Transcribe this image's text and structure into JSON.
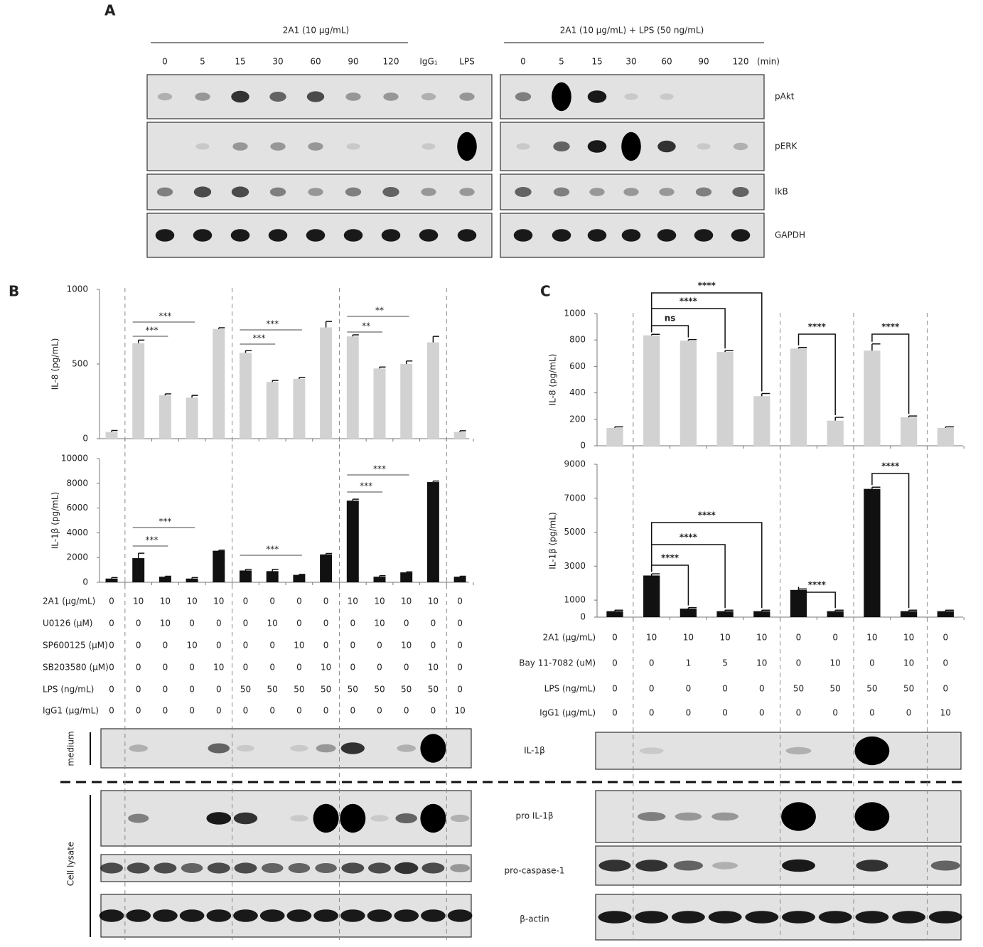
{
  "panel_labels": [
    "A",
    "B",
    "C"
  ],
  "panel_a": {
    "groups": [
      {
        "title": "2A1 (10 µg/mL)",
        "lanes": [
          "0",
          "5",
          "15",
          "30",
          "60",
          "90",
          "120",
          "IgG₁",
          "LPS"
        ]
      },
      {
        "title": "2A1 (10 µg/mL) + LPS (50 ng/mL)",
        "lanes": [
          "0",
          "5",
          "15",
          "30",
          "60",
          "90",
          "120"
        ]
      }
    ],
    "unit": "(min)",
    "blots": [
      "pAkt",
      "pERK",
      "IkB",
      "GAPDH"
    ]
  },
  "chart_data": [
    {
      "type": "bar",
      "ylabel": "IL-8 (pg/mL)",
      "color": "#d2d2d2",
      "ylim": [
        0,
        1000
      ],
      "yticks": [
        0,
        500,
        1000
      ],
      "values": [
        45,
        640,
        290,
        275,
        735,
        575,
        380,
        400,
        745,
        685,
        470,
        500,
        645,
        45
      ],
      "errors": [
        10,
        20,
        10,
        15,
        8,
        15,
        10,
        10,
        40,
        10,
        10,
        20,
        40,
        8
      ],
      "annotations": [
        "***",
        "***",
        "***",
        "***",
        "**",
        "**"
      ]
    },
    {
      "type": "bar",
      "ylabel": "IL-1β (pg/mL)",
      "color": "#111111",
      "ylim": [
        0,
        10000
      ],
      "yticks": [
        0,
        2000,
        4000,
        6000,
        8000,
        10000
      ],
      "values": [
        300,
        1950,
        450,
        300,
        2550,
        950,
        900,
        600,
        2250,
        6600,
        450,
        800,
        8100,
        450
      ],
      "errors": [
        80,
        400,
        40,
        80,
        40,
        100,
        150,
        40,
        80,
        120,
        80,
        40,
        80,
        40
      ],
      "annotations": [
        "***",
        "***",
        "***",
        "***",
        "***"
      ]
    },
    {
      "type": "bar",
      "ylabel": "IL-8 (pg/mL)",
      "color": "#d2d2d2",
      "ylim": [
        0,
        1000
      ],
      "yticks": [
        0,
        200,
        400,
        600,
        800,
        1000
      ],
      "values": [
        135,
        835,
        795,
        710,
        375,
        735,
        190,
        720,
        215,
        135
      ],
      "errors": [
        8,
        8,
        8,
        10,
        20,
        8,
        25,
        50,
        10,
        8
      ],
      "annotations": [
        "ns",
        "****",
        "****",
        "****",
        "****"
      ]
    },
    {
      "type": "bar",
      "ylabel": "IL-1β (pg/mL)",
      "color": "#111111",
      "ylim": [
        0,
        9000
      ],
      "yticks": [
        0,
        1000,
        3000,
        5000,
        7000,
        9000
      ],
      "values": [
        350,
        2450,
        500,
        350,
        350,
        1600,
        350,
        7550,
        350,
        350
      ],
      "errors": [
        60,
        100,
        60,
        60,
        60,
        60,
        60,
        100,
        60,
        60
      ],
      "annotations": [
        "****",
        "****",
        "****",
        "****",
        "****"
      ]
    }
  ],
  "panel_b": {
    "conditions": [
      {
        "label": "2A1 (µg/mL)",
        "values": [
          0,
          10,
          10,
          10,
          10,
          0,
          0,
          0,
          0,
          10,
          10,
          10,
          10,
          0
        ]
      },
      {
        "label": "U0126 (µM)",
        "values": [
          0,
          0,
          10,
          0,
          0,
          0,
          10,
          0,
          0,
          0,
          10,
          0,
          0,
          0
        ]
      },
      {
        "label": "SP600125 (µM)",
        "values": [
          0,
          0,
          0,
          10,
          0,
          0,
          0,
          10,
          0,
          0,
          0,
          10,
          0,
          0
        ]
      },
      {
        "label": "SB203580 (µM)",
        "values": [
          0,
          0,
          0,
          0,
          10,
          0,
          0,
          0,
          10,
          0,
          0,
          0,
          10,
          0
        ]
      },
      {
        "label": "LPS (ng/mL)",
        "values": [
          0,
          0,
          0,
          0,
          0,
          50,
          50,
          50,
          50,
          50,
          50,
          50,
          50,
          0
        ]
      },
      {
        "label": "IgG1 (µg/mL)",
        "values": [
          0,
          0,
          0,
          0,
          0,
          0,
          0,
          0,
          0,
          0,
          0,
          0,
          0,
          10
        ]
      }
    ],
    "blot_groups": [
      "medium",
      "Cell lysate"
    ]
  },
  "panel_c": {
    "conditions": [
      {
        "label": "2A1 (µg/mL)",
        "values": [
          0,
          10,
          10,
          10,
          10,
          0,
          0,
          10,
          10,
          0
        ]
      },
      {
        "label": "Bay 11-7082 (uM)",
        "values": [
          0,
          0,
          1,
          5,
          10,
          0,
          10,
          0,
          10,
          0
        ]
      },
      {
        "label": "LPS (ng/mL)",
        "values": [
          0,
          0,
          0,
          0,
          0,
          50,
          50,
          50,
          50,
          0
        ]
      },
      {
        "label": "IgG1 (µg/mL)",
        "values": [
          0,
          0,
          0,
          0,
          0,
          0,
          0,
          0,
          0,
          10
        ]
      }
    ],
    "blots": [
      "IL-1β",
      "pro IL-1β",
      "pro-caspase-1",
      "β-actin"
    ]
  }
}
